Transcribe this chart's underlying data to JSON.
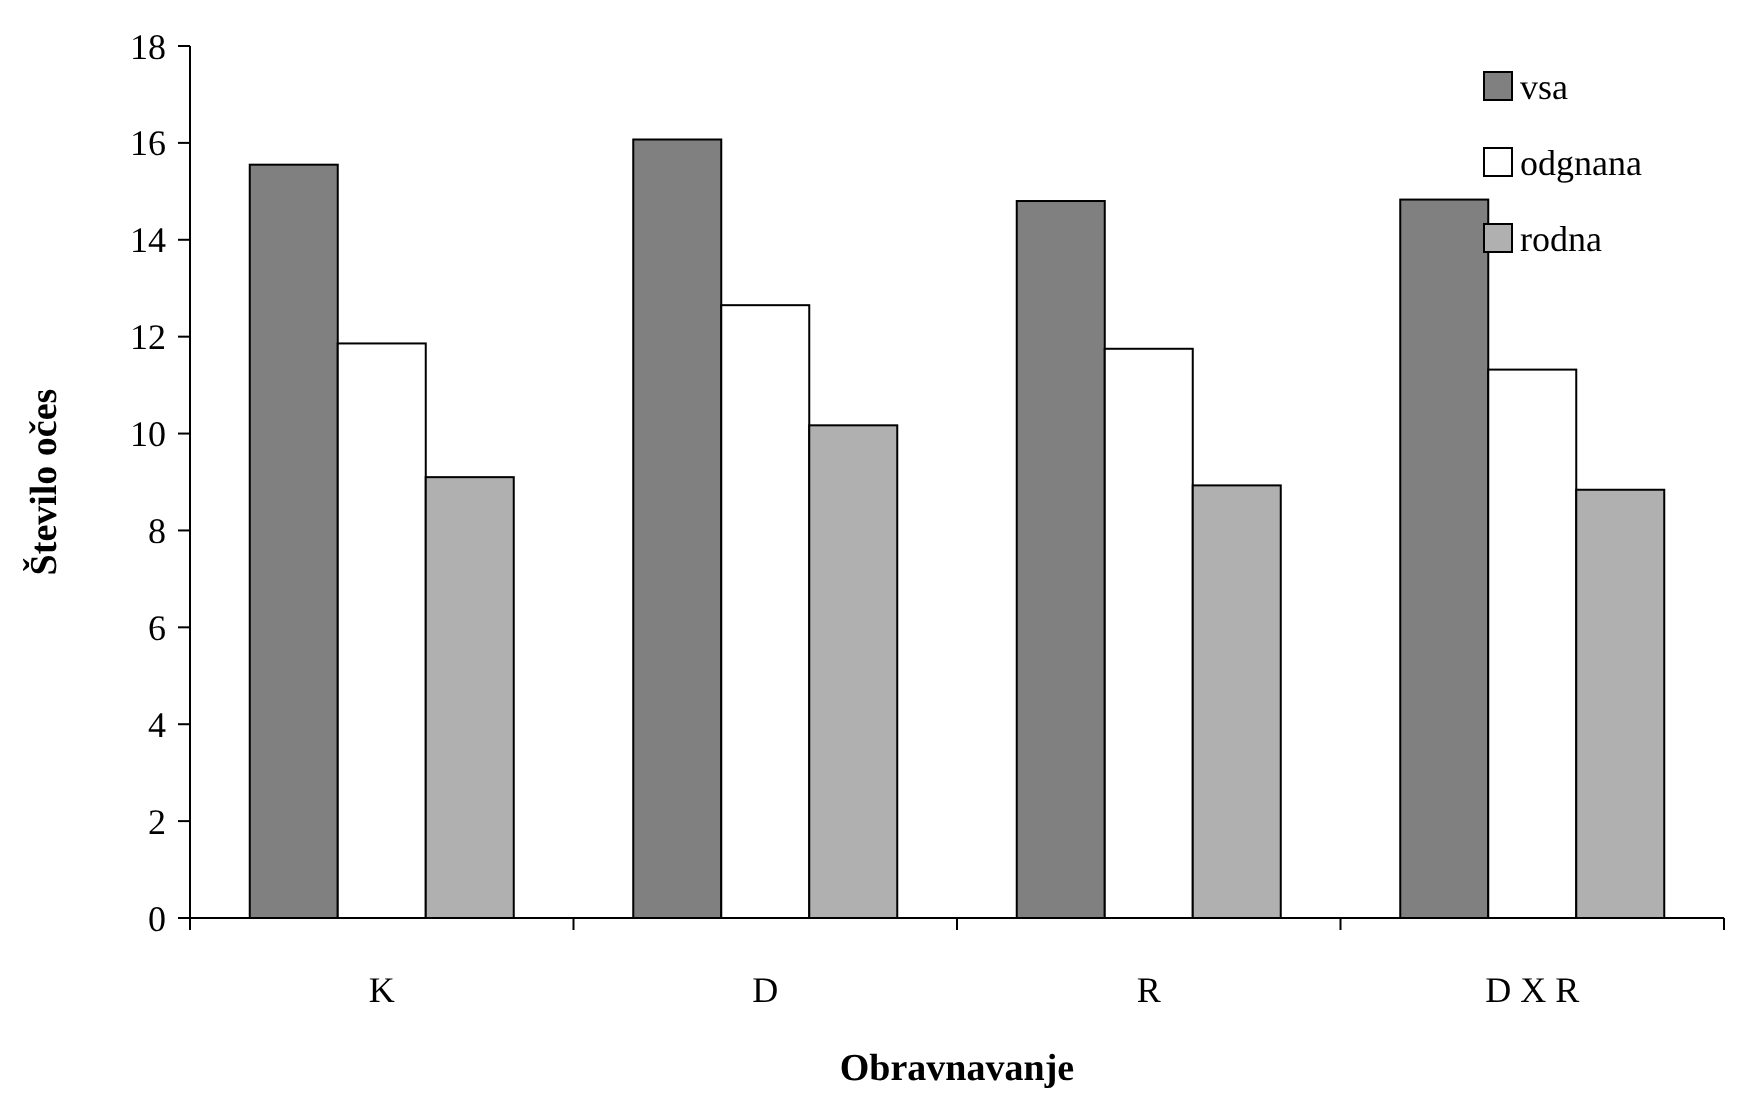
{
  "chart_data": {
    "type": "bar",
    "xlabel": "Obravnavanje",
    "ylabel": "Število očes",
    "categories": [
      "K",
      "D",
      "R",
      "D X R"
    ],
    "series": [
      {
        "name": "vsa",
        "color": "#808080",
        "values": [
          15.55,
          16.07,
          14.8,
          14.83
        ]
      },
      {
        "name": "odgnana",
        "color": "#ffffff",
        "values": [
          11.86,
          12.65,
          11.75,
          11.32
        ]
      },
      {
        "name": "rodna",
        "color": "#b0b0b0",
        "values": [
          9.1,
          10.17,
          8.93,
          8.84
        ]
      }
    ],
    "ylim": [
      0,
      18
    ],
    "yticks": [
      0,
      2,
      4,
      6,
      8,
      10,
      12,
      14,
      16,
      18
    ],
    "grid": false,
    "legend": "top right"
  }
}
